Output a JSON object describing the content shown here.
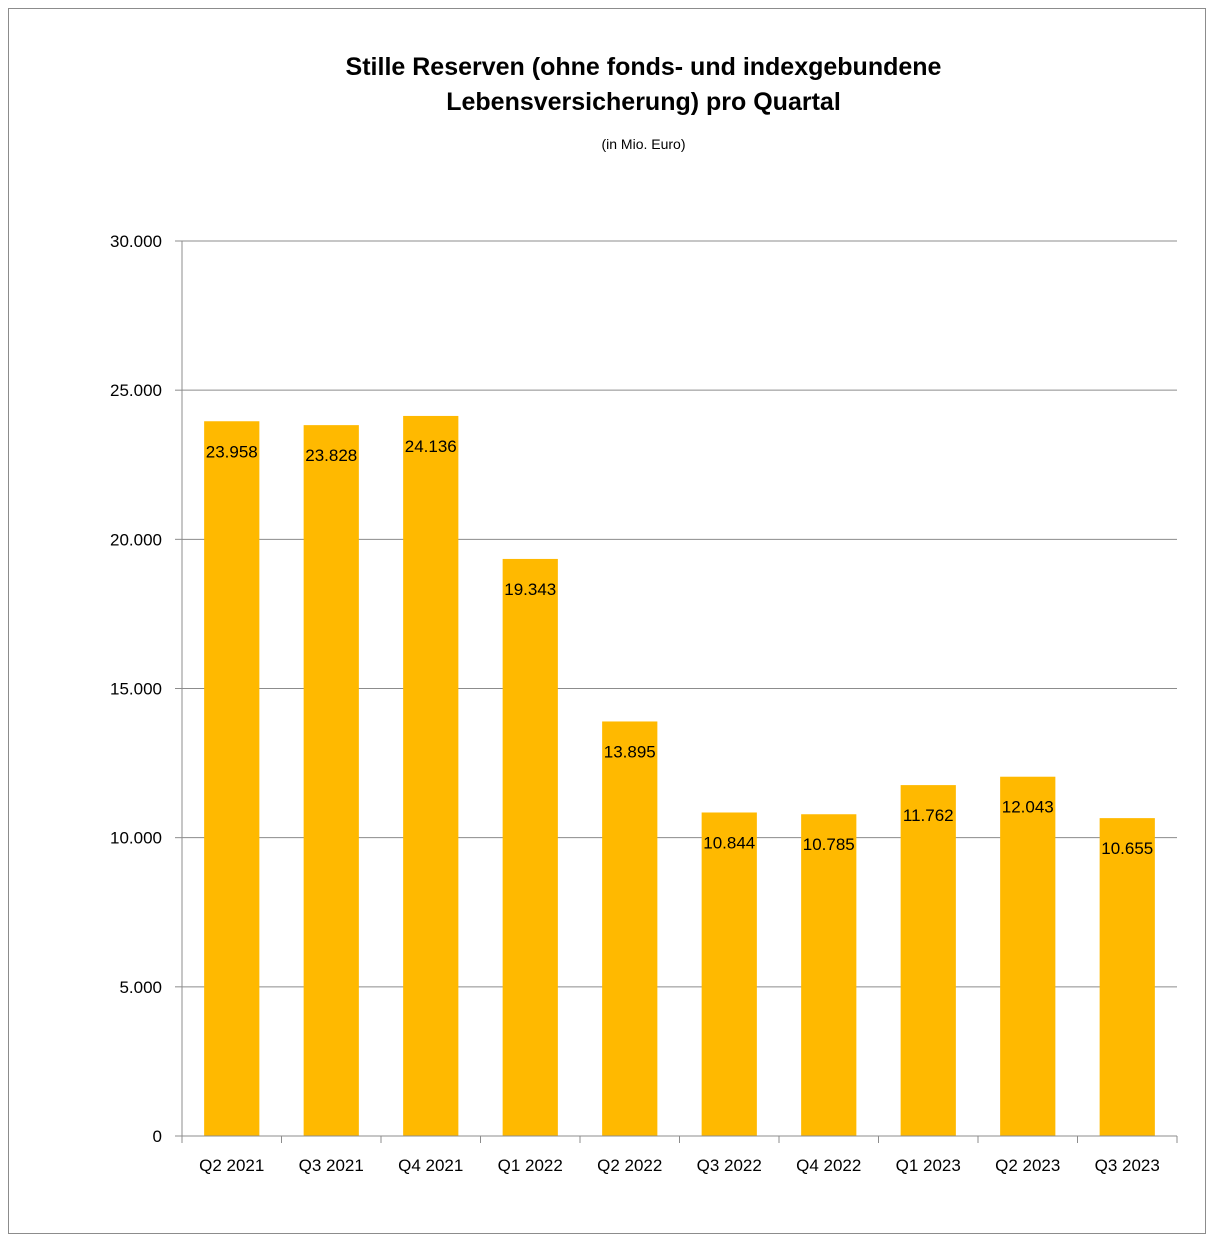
{
  "chart_data": {
    "type": "bar",
    "title": "Stille Reserven (ohne fonds- und indexgebundene Lebensversicherung) pro Quartal",
    "title_lines": [
      "Stille Reserven (ohne fonds- und indexgebundene",
      "Lebensversicherung) pro Quartal"
    ],
    "subtitle": "(in Mio. Euro)",
    "xlabel": "",
    "ylabel": "",
    "categories": [
      "Q2 2021",
      "Q3 2021",
      "Q4 2021",
      "Q1 2022",
      "Q2 2022",
      "Q3 2022",
      "Q4 2022",
      "Q1 2023",
      "Q2 2023",
      "Q3 2023"
    ],
    "values": [
      23958,
      23828,
      24136,
      19343,
      13895,
      10844,
      10785,
      11762,
      12043,
      10655
    ],
    "value_labels": [
      "23.958",
      "23.828",
      "24.136",
      "19.343",
      "13.895",
      "10.844",
      "10.785",
      "11.762",
      "12.043",
      "10.655"
    ],
    "ylim": [
      0,
      30000
    ],
    "yticks": [
      0,
      5000,
      10000,
      15000,
      20000,
      25000,
      30000
    ],
    "ytick_labels": [
      "0",
      "5.000",
      "10.000",
      "15.000",
      "20.000",
      "25.000",
      "30.000"
    ],
    "grid": true,
    "legend": "none",
    "bar_color": "#FFB900"
  }
}
